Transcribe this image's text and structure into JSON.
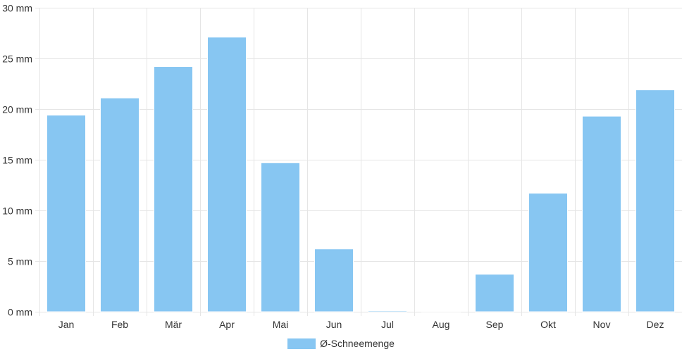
{
  "chart_data": {
    "type": "bar",
    "categories": [
      "Jan",
      "Feb",
      "Mär",
      "Apr",
      "Mai",
      "Jun",
      "Jul",
      "Aug",
      "Sep",
      "Okt",
      "Nov",
      "Dez"
    ],
    "series": [
      {
        "name": "Ø-Schneemenge",
        "values": [
          19.4,
          21.1,
          24.2,
          27.1,
          14.7,
          6.2,
          0.1,
          0.05,
          3.7,
          11.7,
          19.3,
          21.9
        ],
        "color": "#87c6f2"
      }
    ],
    "ylim": [
      0,
      30
    ],
    "yticks": [
      0,
      5,
      10,
      15,
      20,
      25,
      30
    ],
    "ytick_labels": [
      "0 mm",
      "5 mm",
      "10 mm",
      "15 mm",
      "20 mm",
      "25 mm",
      "30 mm"
    ],
    "grid": true,
    "legend_position": "bottom-center",
    "gridColor": "#e5e5e5"
  }
}
